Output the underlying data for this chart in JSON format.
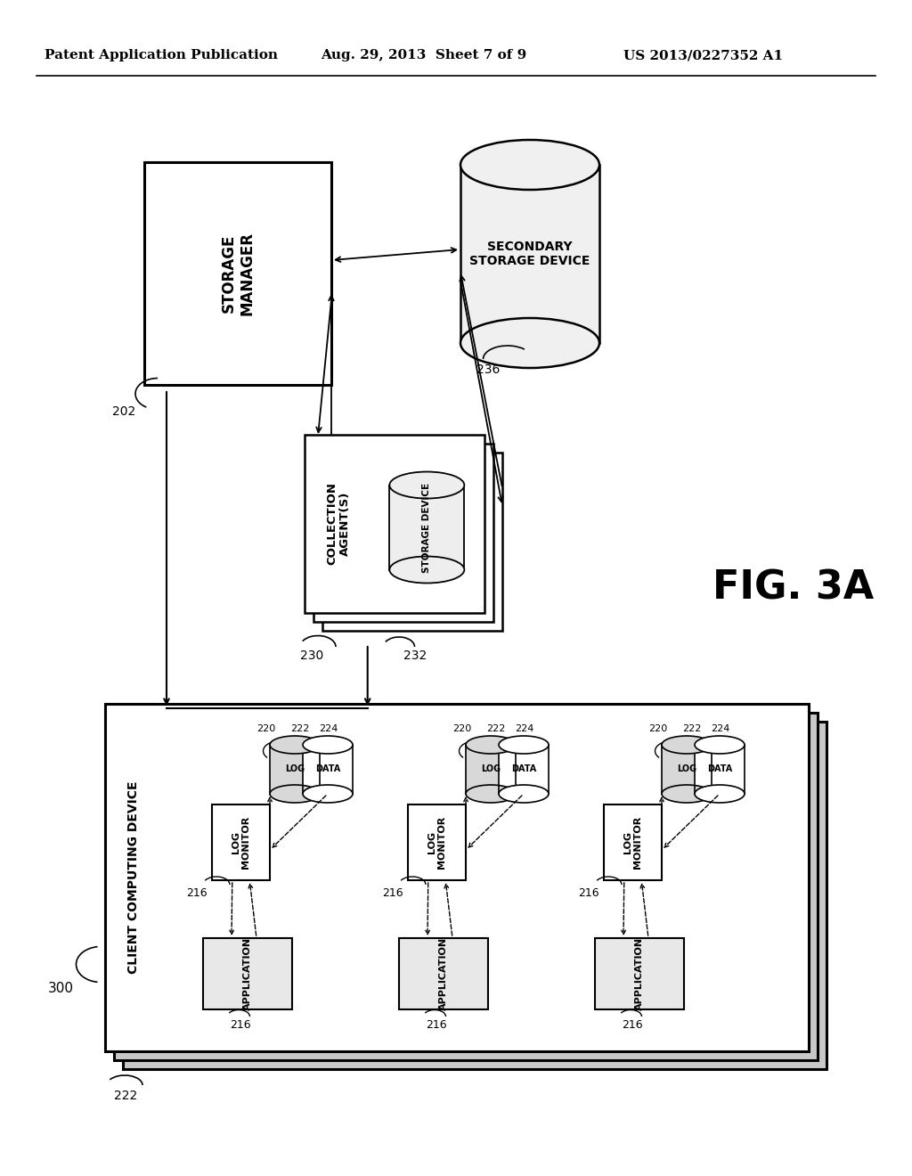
{
  "bg_color": "#ffffff",
  "header_left": "Patent Application Publication",
  "header_mid": "Aug. 29, 2013  Sheet 7 of 9",
  "header_right": "US 2013/0227352 A1",
  "fig_label": "FIG. 3A",
  "storage_manager_label": "STORAGE\nMANAGER",
  "ref_202": "202",
  "secondary_storage_label": "SECONDARY\nSTORAGE DEVICE",
  "ref_236": "236",
  "collection_label": "COLLECTION\nAGENT(S)",
  "storage_device_label": "STORAGE DEVICE",
  "ref_230": "230",
  "ref_232": "232",
  "client_device_label": "CLIENT COMPUTING DEVICE",
  "ref_300": "300",
  "log_monitor_label": "LOG\nMONITOR",
  "application_label": "APPLICATION",
  "log_label": "LOG",
  "data_label": "DATA",
  "ref_220": "220",
  "ref_222": "222",
  "ref_224": "224",
  "ref_216": "216"
}
